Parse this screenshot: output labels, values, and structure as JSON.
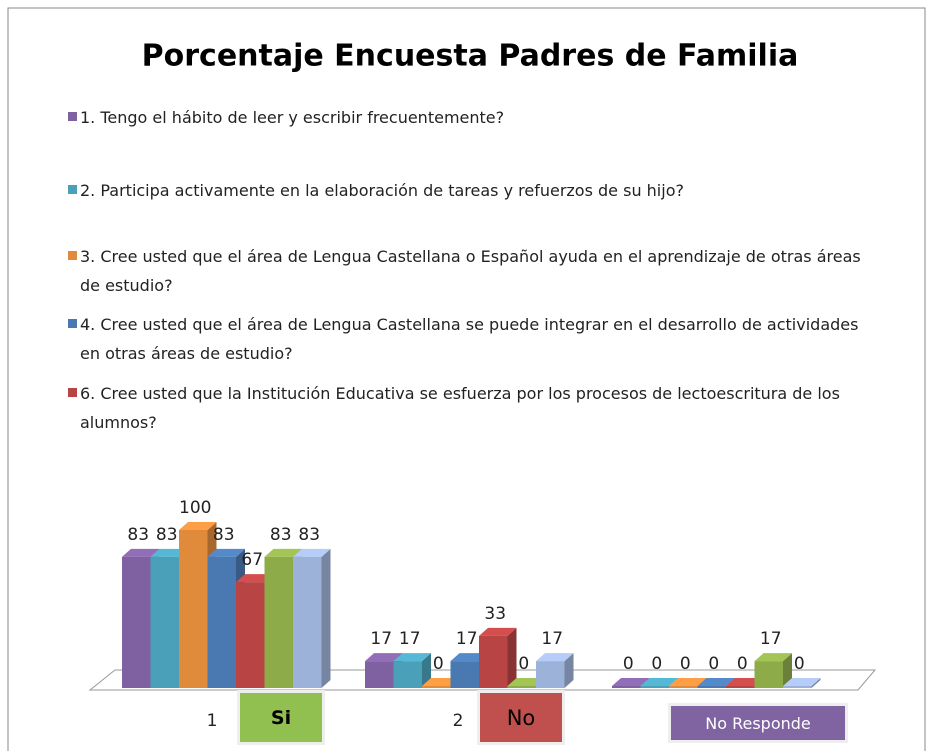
{
  "chart_data": {
    "type": "bar3d",
    "title": "Porcentaje Encuesta Padres de Familia",
    "categories": [
      "1",
      "2",
      null
    ],
    "series": [
      {
        "name": "1. Tengo el hábito de leer y escribir frecuentemente?",
        "color": "#7f60a0",
        "values": [
          83,
          17,
          0
        ]
      },
      {
        "name": "2. Participa activamente en la elaboración de tareas y refuerzos de su hijo?",
        "color": "#4aa0b8",
        "values": [
          83,
          17,
          0
        ]
      },
      {
        "name": "3. Cree usted que el área de Lengua Castellana o Español ayuda en el aprendizaje de otras áreas de estudio?",
        "color": "#e08a3c",
        "values": [
          100,
          0,
          0
        ]
      },
      {
        "name": "4. Cree usted que el área de Lengua Castellana se puede integrar en el desarrollo de actividades en otras áreas de estudio?",
        "color": "#4a78b0",
        "values": [
          83,
          17,
          0
        ]
      },
      {
        "name": "6. Cree usted que la Institución Educativa se esfuerza por los procesos de lectoescritura de los alumnos?",
        "color": "#b84444",
        "values": [
          67,
          33,
          0
        ]
      },
      {
        "color": "#8eab4a",
        "values": [
          83,
          0,
          17
        ]
      },
      {
        "color": "#9db2d8",
        "values": [
          83,
          17,
          0
        ]
      }
    ],
    "annotations": [
      {
        "text": "Si",
        "color": "#92c050"
      },
      {
        "text": "No",
        "color": "#c0504d"
      },
      {
        "text": "No Responde",
        "color": "#8064a2"
      }
    ]
  }
}
